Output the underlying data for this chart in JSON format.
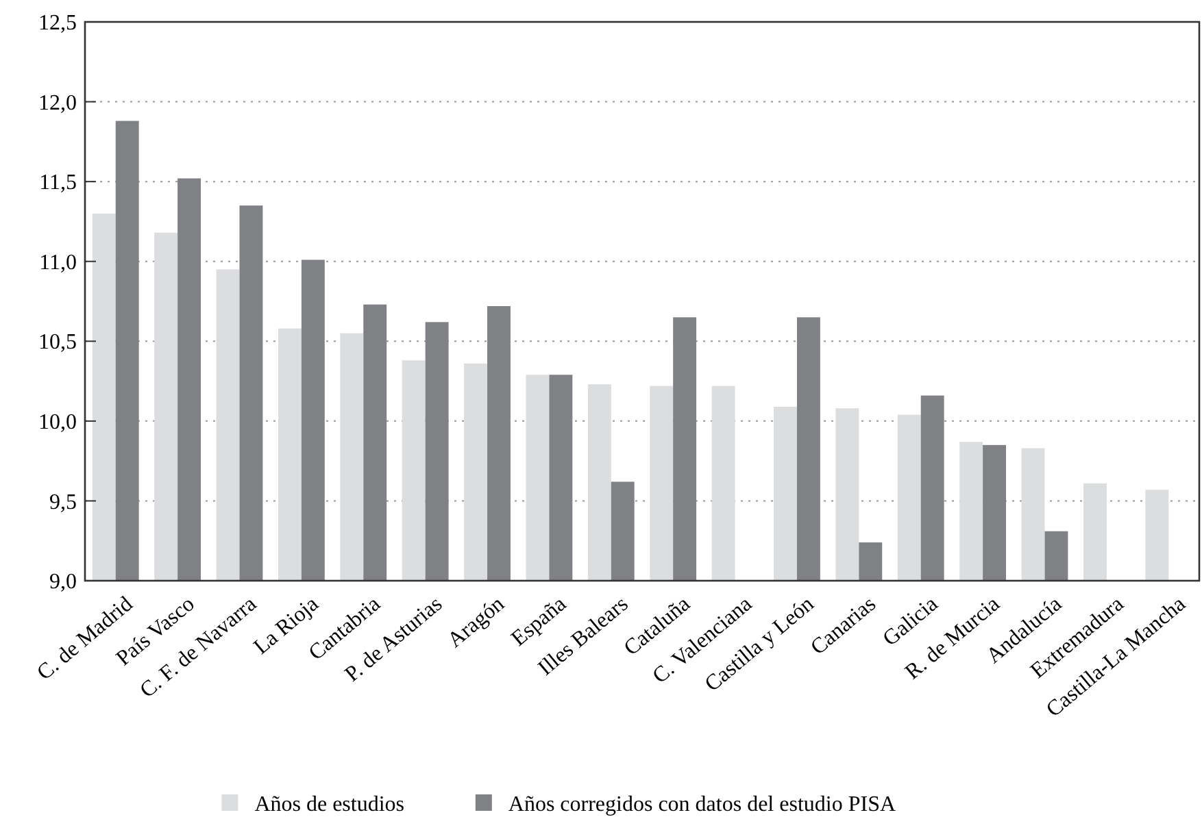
{
  "chart_data": {
    "type": "bar",
    "categories": [
      "C. de Madrid",
      "País Vasco",
      "C. F. de Navarra",
      "La Rioja",
      "Cantabria",
      "P. de Asturias",
      "Aragón",
      "España",
      "Illes Balears",
      "Cataluña",
      "C. Valenciana",
      "Castilla y León",
      "Canarias",
      "Galicia",
      "R. de Murcia",
      "Andalucía",
      "Extremadura",
      "Castilla-La Mancha"
    ],
    "series": [
      {
        "name": "Años de estudios",
        "color": "#dcdddf",
        "values": [
          11.3,
          11.18,
          10.95,
          10.58,
          10.55,
          10.38,
          10.36,
          10.29,
          10.23,
          10.22,
          10.22,
          10.09,
          10.08,
          10.04,
          9.87,
          9.83,
          9.61,
          9.57
        ]
      },
      {
        "name": "Años corregidos con datos del estudio PISA",
        "color": "#808185",
        "values": [
          11.88,
          11.52,
          11.35,
          11.01,
          10.73,
          10.62,
          10.72,
          10.29,
          9.62,
          10.65,
          null,
          10.65,
          9.24,
          10.16,
          9.85,
          9.31,
          null,
          null
        ]
      }
    ],
    "ylim": [
      9,
      12.5
    ],
    "yticks": [
      {
        "value": 9,
        "label": "9,0"
      },
      {
        "value": 9.5,
        "label": "9,5"
      },
      {
        "value": 10,
        "label": "10,0"
      },
      {
        "value": 10.5,
        "label": "10,5"
      },
      {
        "value": 11,
        "label": "11,0"
      },
      {
        "value": 11.5,
        "label": "11,5"
      },
      {
        "value": 12,
        "label": "12,0"
      },
      {
        "value": 12.5,
        "label": "12,5"
      }
    ],
    "grid": "y",
    "legend": "bottom"
  }
}
